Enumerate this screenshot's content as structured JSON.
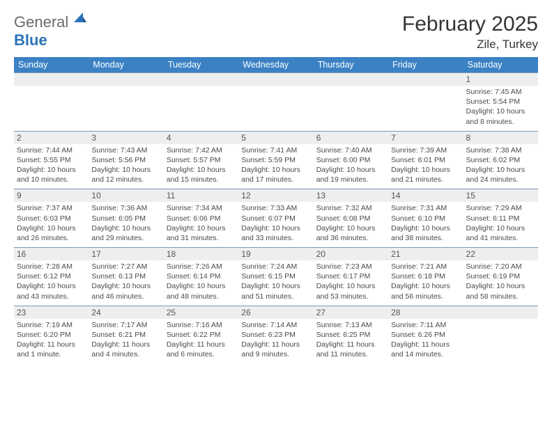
{
  "brand": {
    "word1": "General",
    "word2": "Blue"
  },
  "header": {
    "title": "February 2025",
    "location": "Zile, Turkey"
  },
  "style": {
    "header_blue": "#3b82c4",
    "text": "#3a3a3a",
    "row_sep": "#7a9ab5",
    "shade": "#eceeef",
    "page_bg": "#ffffff",
    "daynum_fontsize": 12,
    "info_fontsize": 10.5,
    "header_fontsize": 12.5,
    "title_fontsize": 30,
    "loc_fontsize": 17
  },
  "weekdays": [
    "Sunday",
    "Monday",
    "Tuesday",
    "Wednesday",
    "Thursday",
    "Friday",
    "Saturday"
  ],
  "weeks": [
    [
      {
        "n": ""
      },
      {
        "n": ""
      },
      {
        "n": ""
      },
      {
        "n": ""
      },
      {
        "n": ""
      },
      {
        "n": ""
      },
      {
        "n": "1",
        "sr": "Sunrise: 7:45 AM",
        "ss": "Sunset: 5:54 PM",
        "dl": "Daylight: 10 hours and 8 minutes."
      }
    ],
    [
      {
        "n": "2",
        "sr": "Sunrise: 7:44 AM",
        "ss": "Sunset: 5:55 PM",
        "dl": "Daylight: 10 hours and 10 minutes."
      },
      {
        "n": "3",
        "sr": "Sunrise: 7:43 AM",
        "ss": "Sunset: 5:56 PM",
        "dl": "Daylight: 10 hours and 12 minutes."
      },
      {
        "n": "4",
        "sr": "Sunrise: 7:42 AM",
        "ss": "Sunset: 5:57 PM",
        "dl": "Daylight: 10 hours and 15 minutes."
      },
      {
        "n": "5",
        "sr": "Sunrise: 7:41 AM",
        "ss": "Sunset: 5:59 PM",
        "dl": "Daylight: 10 hours and 17 minutes."
      },
      {
        "n": "6",
        "sr": "Sunrise: 7:40 AM",
        "ss": "Sunset: 6:00 PM",
        "dl": "Daylight: 10 hours and 19 minutes."
      },
      {
        "n": "7",
        "sr": "Sunrise: 7:39 AM",
        "ss": "Sunset: 6:01 PM",
        "dl": "Daylight: 10 hours and 21 minutes."
      },
      {
        "n": "8",
        "sr": "Sunrise: 7:38 AM",
        "ss": "Sunset: 6:02 PM",
        "dl": "Daylight: 10 hours and 24 minutes."
      }
    ],
    [
      {
        "n": "9",
        "sr": "Sunrise: 7:37 AM",
        "ss": "Sunset: 6:03 PM",
        "dl": "Daylight: 10 hours and 26 minutes."
      },
      {
        "n": "10",
        "sr": "Sunrise: 7:36 AM",
        "ss": "Sunset: 6:05 PM",
        "dl": "Daylight: 10 hours and 29 minutes."
      },
      {
        "n": "11",
        "sr": "Sunrise: 7:34 AM",
        "ss": "Sunset: 6:06 PM",
        "dl": "Daylight: 10 hours and 31 minutes."
      },
      {
        "n": "12",
        "sr": "Sunrise: 7:33 AM",
        "ss": "Sunset: 6:07 PM",
        "dl": "Daylight: 10 hours and 33 minutes."
      },
      {
        "n": "13",
        "sr": "Sunrise: 7:32 AM",
        "ss": "Sunset: 6:08 PM",
        "dl": "Daylight: 10 hours and 36 minutes."
      },
      {
        "n": "14",
        "sr": "Sunrise: 7:31 AM",
        "ss": "Sunset: 6:10 PM",
        "dl": "Daylight: 10 hours and 38 minutes."
      },
      {
        "n": "15",
        "sr": "Sunrise: 7:29 AM",
        "ss": "Sunset: 6:11 PM",
        "dl": "Daylight: 10 hours and 41 minutes."
      }
    ],
    [
      {
        "n": "16",
        "sr": "Sunrise: 7:28 AM",
        "ss": "Sunset: 6:12 PM",
        "dl": "Daylight: 10 hours and 43 minutes."
      },
      {
        "n": "17",
        "sr": "Sunrise: 7:27 AM",
        "ss": "Sunset: 6:13 PM",
        "dl": "Daylight: 10 hours and 46 minutes."
      },
      {
        "n": "18",
        "sr": "Sunrise: 7:26 AM",
        "ss": "Sunset: 6:14 PM",
        "dl": "Daylight: 10 hours and 48 minutes."
      },
      {
        "n": "19",
        "sr": "Sunrise: 7:24 AM",
        "ss": "Sunset: 6:15 PM",
        "dl": "Daylight: 10 hours and 51 minutes."
      },
      {
        "n": "20",
        "sr": "Sunrise: 7:23 AM",
        "ss": "Sunset: 6:17 PM",
        "dl": "Daylight: 10 hours and 53 minutes."
      },
      {
        "n": "21",
        "sr": "Sunrise: 7:21 AM",
        "ss": "Sunset: 6:18 PM",
        "dl": "Daylight: 10 hours and 56 minutes."
      },
      {
        "n": "22",
        "sr": "Sunrise: 7:20 AM",
        "ss": "Sunset: 6:19 PM",
        "dl": "Daylight: 10 hours and 58 minutes."
      }
    ],
    [
      {
        "n": "23",
        "sr": "Sunrise: 7:19 AM",
        "ss": "Sunset: 6:20 PM",
        "dl": "Daylight: 11 hours and 1 minute."
      },
      {
        "n": "24",
        "sr": "Sunrise: 7:17 AM",
        "ss": "Sunset: 6:21 PM",
        "dl": "Daylight: 11 hours and 4 minutes."
      },
      {
        "n": "25",
        "sr": "Sunrise: 7:16 AM",
        "ss": "Sunset: 6:22 PM",
        "dl": "Daylight: 11 hours and 6 minutes."
      },
      {
        "n": "26",
        "sr": "Sunrise: 7:14 AM",
        "ss": "Sunset: 6:23 PM",
        "dl": "Daylight: 11 hours and 9 minutes."
      },
      {
        "n": "27",
        "sr": "Sunrise: 7:13 AM",
        "ss": "Sunset: 6:25 PM",
        "dl": "Daylight: 11 hours and 11 minutes."
      },
      {
        "n": "28",
        "sr": "Sunrise: 7:11 AM",
        "ss": "Sunset: 6:26 PM",
        "dl": "Daylight: 11 hours and 14 minutes."
      },
      {
        "n": ""
      }
    ]
  ]
}
